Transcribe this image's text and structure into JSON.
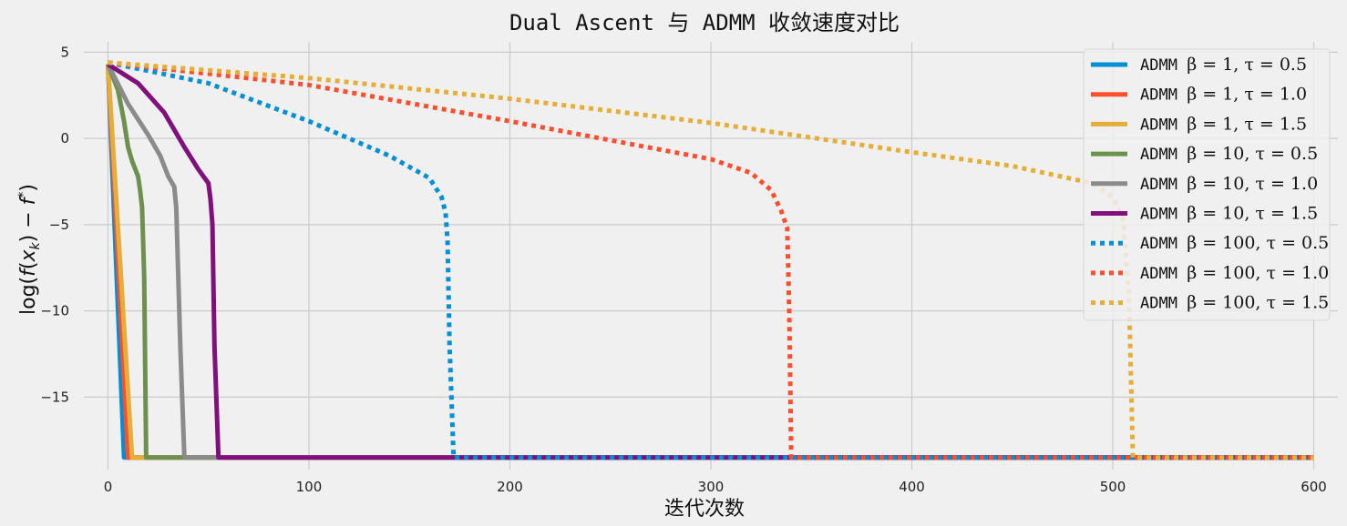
{
  "chart_data": {
    "type": "line",
    "title": "Dual Ascent 与 ADMM 收敛速度对比",
    "xlabel": "迭代次数",
    "ylabel": "log(f(x_k) − f*)",
    "xlim": [
      -12,
      612
    ],
    "ylim": [
      -19.2,
      5.6
    ],
    "xticks": [
      0,
      100,
      200,
      300,
      400,
      500,
      600
    ],
    "yticks": [
      5,
      0,
      -5,
      -10,
      -15
    ],
    "ytick_labels": [
      "5",
      "0",
      "−5",
      "−10",
      "−15"
    ],
    "grid": true,
    "legend_position": "top-right",
    "floor": -18.5,
    "x_end": 600,
    "series": [
      {
        "name": "ADMM β = 1, τ = 0.5",
        "legend_math": "β = 1, τ = 0.5",
        "color": "#008fd5",
        "style": "solid",
        "points": [
          [
            0,
            4.3
          ],
          [
            8,
            -18.5
          ]
        ]
      },
      {
        "name": "ADMM β = 1, τ = 1.0",
        "legend_math": "β = 1, τ = 1.0",
        "color": "#fc4f30",
        "style": "solid",
        "points": [
          [
            0,
            4.3
          ],
          [
            10,
            -18.5
          ]
        ]
      },
      {
        "name": "ADMM β = 1, τ = 1.5",
        "legend_math": "β = 1, τ = 1.5",
        "color": "#e5ae38",
        "style": "solid",
        "points": [
          [
            0,
            4.3
          ],
          [
            12,
            -18.5
          ]
        ]
      },
      {
        "name": "ADMM β = 10, τ = 0.5",
        "legend_math": "β = 10, τ = 0.5",
        "color": "#6d904f",
        "style": "solid",
        "points": [
          [
            0,
            4.3
          ],
          [
            5,
            2.8
          ],
          [
            8,
            1.0
          ],
          [
            10,
            -0.5
          ],
          [
            12,
            -1.3
          ],
          [
            15,
            -2.2
          ],
          [
            16,
            -3.0
          ],
          [
            17,
            -4.0
          ],
          [
            18,
            -8.0
          ],
          [
            19,
            -18.5
          ]
        ]
      },
      {
        "name": "ADMM β = 10, τ = 1.0",
        "legend_math": "β = 10, τ = 1.0",
        "color": "#8b8b8b",
        "style": "solid",
        "points": [
          [
            0,
            4.3
          ],
          [
            10,
            2.0
          ],
          [
            20,
            0.2
          ],
          [
            26,
            -1.0
          ],
          [
            30,
            -2.2
          ],
          [
            33,
            -2.8
          ],
          [
            34,
            -4.0
          ],
          [
            36,
            -12.0
          ],
          [
            38,
            -18.5
          ]
        ]
      },
      {
        "name": "ADMM β = 10, τ = 1.5",
        "legend_math": "β = 10, τ = 1.5",
        "color": "#810f7c",
        "style": "solid",
        "points": [
          [
            0,
            4.3
          ],
          [
            15,
            3.2
          ],
          [
            28,
            1.5
          ],
          [
            38,
            -0.5
          ],
          [
            45,
            -1.8
          ],
          [
            50,
            -2.6
          ],
          [
            51,
            -3.5
          ],
          [
            52,
            -5.0
          ],
          [
            53,
            -12.0
          ],
          [
            55,
            -18.5
          ]
        ]
      },
      {
        "name": "ADMM β = 100, τ = 0.5",
        "legend_math": "β = 100, τ = 0.5",
        "color": "#008fd5",
        "style": "dotted",
        "points": [
          [
            0,
            4.4
          ],
          [
            50,
            3.2
          ],
          [
            100,
            1.0
          ],
          [
            140,
            -1.0
          ],
          [
            160,
            -2.3
          ],
          [
            166,
            -3.4
          ],
          [
            168,
            -4.3
          ],
          [
            169,
            -6.0
          ],
          [
            170,
            -12.0
          ],
          [
            172,
            -18.5
          ]
        ]
      },
      {
        "name": "ADMM β = 100, τ = 1.0",
        "legend_math": "β = 100, τ = 1.0",
        "color": "#fc4f30",
        "style": "dotted",
        "points": [
          [
            0,
            4.4
          ],
          [
            100,
            3.1
          ],
          [
            200,
            1.0
          ],
          [
            300,
            -1.2
          ],
          [
            320,
            -2.0
          ],
          [
            330,
            -3.0
          ],
          [
            335,
            -4.2
          ],
          [
            338,
            -5.2
          ],
          [
            339,
            -10.0
          ],
          [
            340,
            -18.5
          ]
        ]
      },
      {
        "name": "ADMM β = 100, τ = 1.5",
        "legend_math": "β = 100, τ = 1.5",
        "color": "#e5ae38",
        "style": "dotted",
        "points": [
          [
            0,
            4.4
          ],
          [
            100,
            3.5
          ],
          [
            200,
            2.3
          ],
          [
            300,
            0.9
          ],
          [
            400,
            -0.8
          ],
          [
            450,
            -1.6
          ],
          [
            490,
            -2.6
          ],
          [
            500,
            -3.4
          ],
          [
            505,
            -4.6
          ],
          [
            508,
            -9.0
          ],
          [
            510,
            -18.5
          ]
        ]
      }
    ]
  }
}
